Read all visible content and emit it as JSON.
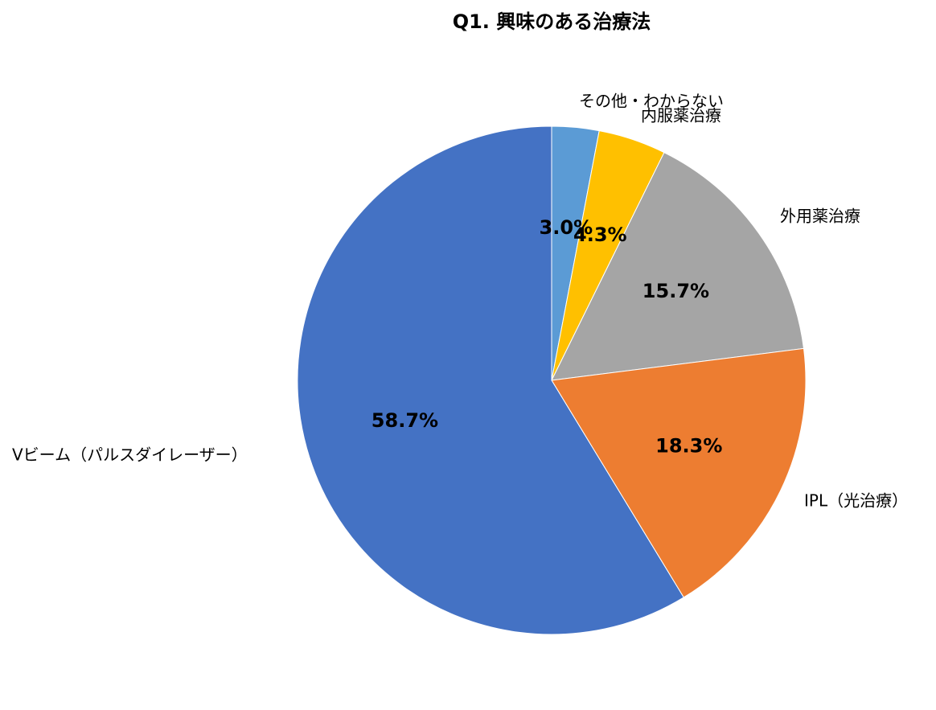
{
  "chart_data": {
    "type": "pie",
    "title": "Q1. 興味のある治療法",
    "categories": [
      "その他・わからない",
      "内服薬治療",
      "外用薬治療",
      "IPL（光治療）",
      "Vビーム（パルスダイレーザー）"
    ],
    "values": [
      3.0,
      4.3,
      15.7,
      18.3,
      58.7
    ],
    "value_labels": [
      "3.0%",
      "4.3%",
      "15.7%",
      "18.3%",
      "58.7%"
    ],
    "colors": [
      "#5b9bd5",
      "#ffc000",
      "#a5a5a5",
      "#ed7d31",
      "#4472c4"
    ]
  }
}
